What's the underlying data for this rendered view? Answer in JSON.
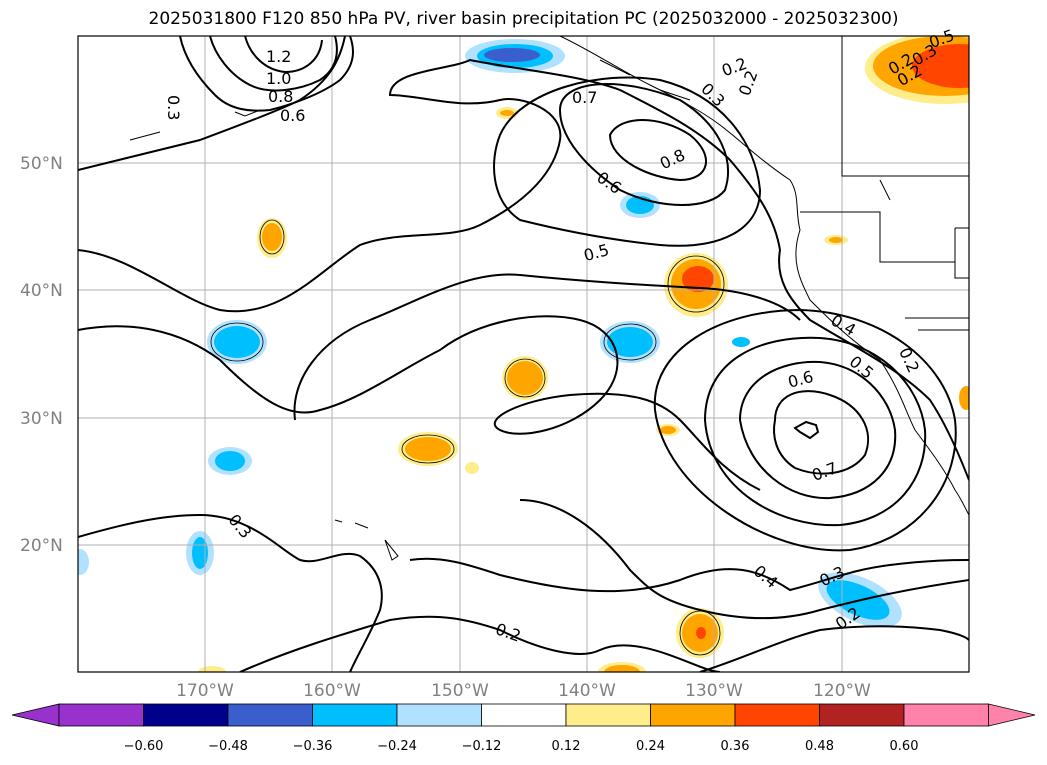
{
  "title": "2025031800 F120 850 hPa PV, river basin precipitation PC (2025032000 - 2025032300)",
  "lat_labels": [
    "50°N",
    "40°N",
    "30°N",
    "20°N"
  ],
  "lon_labels": [
    "170°W",
    "160°W",
    "150°W",
    "140°W",
    "130°W",
    "120°W"
  ],
  "colorbar": {
    "ticks": [
      "−0.60",
      "−0.48",
      "−0.36",
      "−0.24",
      "−0.12",
      "0.12",
      "0.24",
      "0.36",
      "0.48",
      "0.60"
    ],
    "colors": [
      "#9932CC",
      "#00008B",
      "#3A5FCD",
      "#00BFFF",
      "#B0E2FF",
      "#FFFFFF",
      "#FFEC8B",
      "#FFA500",
      "#FF4500",
      "#B22222",
      "#FF82AB"
    ]
  },
  "contour_labels": [
    "1.2",
    "1.0",
    "0.8",
    "0.6",
    "0.3",
    "0.7",
    "0.8",
    "0.6",
    "0.5",
    "0.2",
    "0.3",
    "0.2",
    "0.4",
    "0.5",
    "0.6",
    "0.7",
    "0.2",
    "0.3",
    "0.2",
    "0.4",
    "0.2",
    "0.3",
    "0.2",
    "0.5",
    "0.3",
    "0.2"
  ]
}
